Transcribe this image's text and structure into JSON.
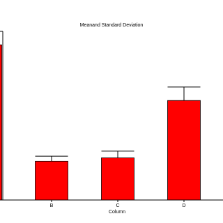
{
  "chart_data": {
    "type": "bar",
    "title": "Meanand Standard Deviation",
    "x_label": "Column",
    "categories": [
      null,
      "B",
      "C",
      "D"
    ],
    "values": [
      92,
      23,
      25,
      59
    ],
    "errors": [
      null,
      3,
      4,
      8
    ],
    "color": "#ff0000",
    "ylim": [
      0,
      100
    ]
  }
}
